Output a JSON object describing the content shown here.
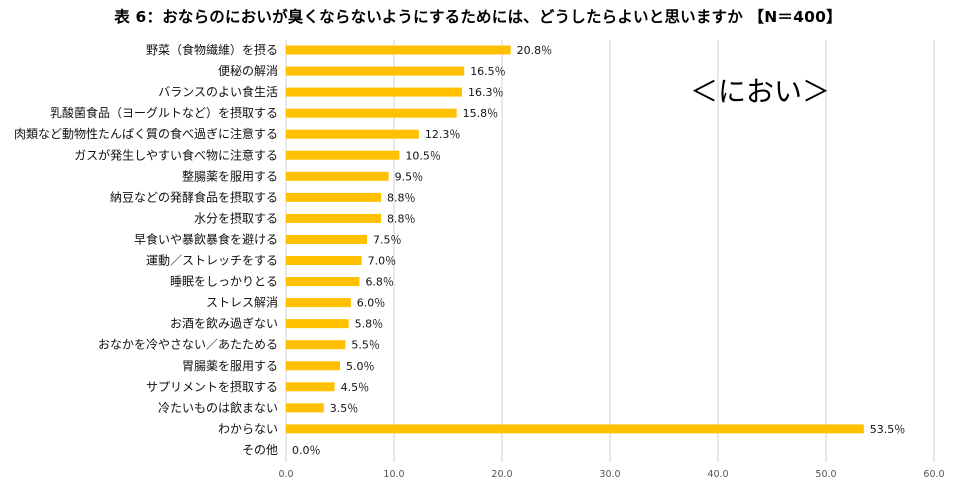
{
  "colors": {
    "bar": "#FFC000",
    "grid": "#d0d0d0"
  },
  "chart_data": {
    "type": "bar",
    "orientation": "horizontal",
    "title": "表 6：おならのにおいが臭くならないようにするためには、どうしたらよいと思いますか 【N＝400】",
    "annotation": "＜におい＞",
    "xlim": [
      0,
      60
    ],
    "xticks": [
      "0.0",
      "10.0",
      "20.0",
      "30.0",
      "40.0",
      "50.0",
      "60.0"
    ],
    "grid": true,
    "categories": [
      "野菜（食物繊維）を摂る",
      "便秘の解消",
      "バランスのよい食生活",
      "乳酸菌食品（ヨーグルトなど）を摂取する",
      "肉類など動物性たんぱく質の食べ過ぎに注意する",
      "ガスが発生しやすい食べ物に注意する",
      "整腸薬を服用する",
      "納豆などの発酵食品を摂取する",
      "水分を摂取する",
      "早食いや暴飲暴食を避ける",
      "運動／ストレッチをする",
      "睡眠をしっかりとる",
      "ストレス解消",
      "お酒を飲み過ぎない",
      "おなかを冷やさない／あたためる",
      "胃腸薬を服用する",
      "サプリメントを摂取する",
      "冷たいものは飲まない",
      "わからない",
      "その他"
    ],
    "values": [
      20.8,
      16.5,
      16.3,
      15.8,
      12.3,
      10.5,
      9.5,
      8.8,
      8.8,
      7.5,
      7.0,
      6.8,
      6.0,
      5.8,
      5.5,
      5.0,
      4.5,
      3.5,
      53.5,
      0.0
    ],
    "value_labels": [
      "20.8％",
      "16.5％",
      "16.3％",
      "15.8％",
      "12.3％",
      "10.5％",
      "9.5％",
      "8.8％",
      "8.8％",
      "7.5％",
      "7.0％",
      "6.8％",
      "6.0％",
      "5.8％",
      "5.5％",
      "5.0％",
      "4.5％",
      "3.5％",
      "53.5％",
      "0.0％"
    ]
  }
}
